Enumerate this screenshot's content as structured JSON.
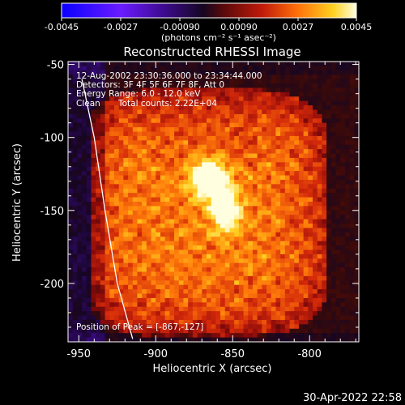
{
  "chart_data": {
    "type": "heatmap",
    "title": "Reconstructed RHESSI Image",
    "xlabel": "Heliocentric X (arcsec)",
    "ylabel": "Heliocentric Y (arcsec)",
    "xlim": [
      -957,
      -768
    ],
    "ylim": [
      -240,
      -48
    ],
    "xticks": [
      -950,
      -900,
      -850,
      -800
    ],
    "yticks": [
      -50,
      -100,
      -150,
      -200
    ],
    "colorbar": {
      "range": [
        -0.0045,
        0.0045
      ],
      "ticks": [
        "-0.0045",
        "-0.0027",
        "-0.00090",
        "0.00090",
        "0.0027",
        "0.0045"
      ],
      "unit_label": "(photons cm⁻² s⁻¹ asec⁻²)"
    },
    "annotations": {
      "time_range": "12-Aug-2002 23:30:36.000 to 23:34:44.000",
      "detectors": "Detectors: 3F 4F 5F 6F 7F 8F, Att 0",
      "energy": "Energy Range: 6.0 - 12.0 keV",
      "method": "Clean",
      "counts": "Total counts: 2.22E+04",
      "peak": "Position of Peak = [-867,-127]"
    },
    "peak": {
      "x": -867,
      "y": -127
    },
    "secondary_source": {
      "x": -856,
      "y": -148
    },
    "limb_curve": [
      [
        -948,
        -60
      ],
      [
        -940,
        -100
      ],
      [
        -933,
        -150
      ],
      [
        -925,
        -200
      ],
      [
        -915,
        -238
      ]
    ],
    "colors": {
      "background": "#000000",
      "colormap": [
        "#0a00ff",
        "#5a20ff",
        "#3c0a8c",
        "#160622",
        "#3a0a0a",
        "#8a0a0a",
        "#d42a0a",
        "#ff7a0a",
        "#ffd020",
        "#ffffe0"
      ]
    }
  },
  "footer": {
    "timestamp": "30-Apr-2022 22:58"
  }
}
